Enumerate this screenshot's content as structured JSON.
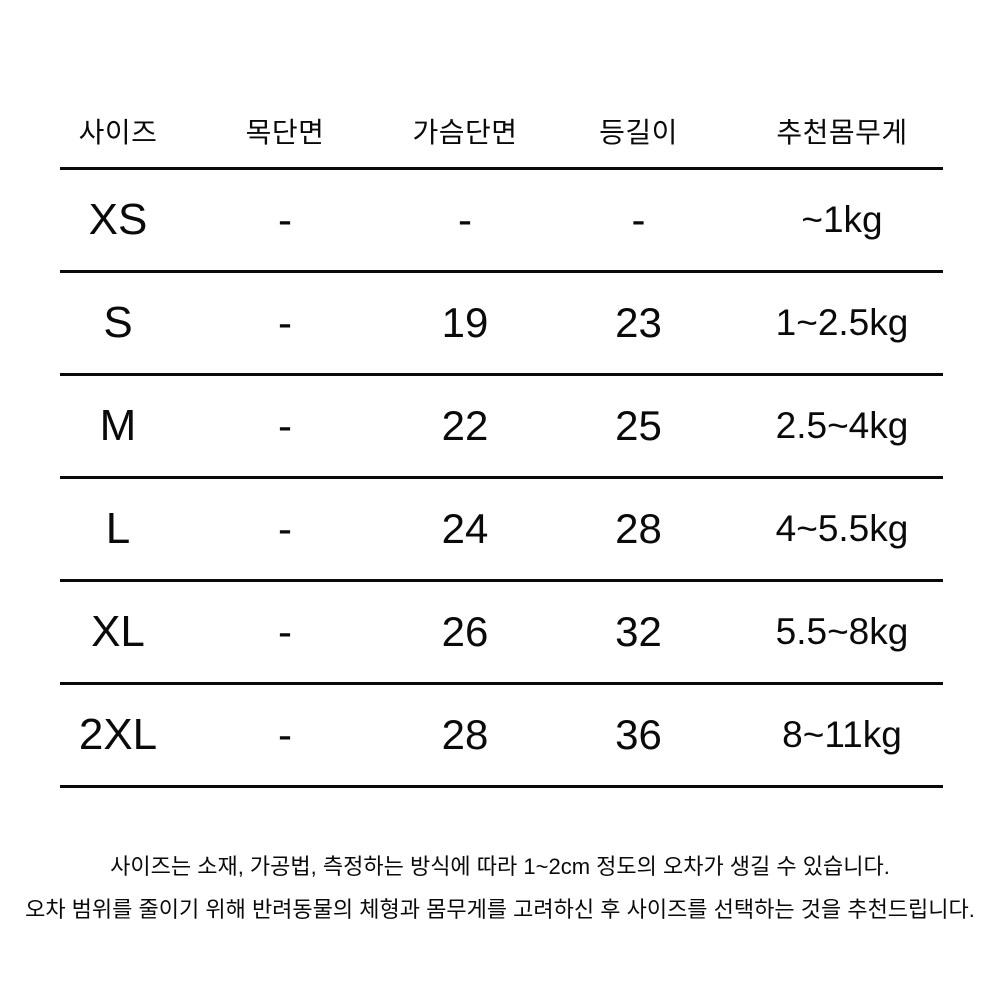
{
  "colors": {
    "background": "#ffffff",
    "text": "#0a0a0a",
    "rule_line": "#0a0a0a"
  },
  "table": {
    "headers": {
      "size": "사이즈",
      "neck": "목단면",
      "chest": "가슴단면",
      "back": "등길이",
      "weight": "추천몸무게"
    },
    "rows": [
      {
        "size": "XS",
        "neck": "-",
        "chest": "-",
        "back": "-",
        "weight": "~1kg"
      },
      {
        "size": "S",
        "neck": "-",
        "chest": "19",
        "back": "23",
        "weight": "1~2.5kg"
      },
      {
        "size": "M",
        "neck": "-",
        "chest": "22",
        "back": "25",
        "weight": "2.5~4kg"
      },
      {
        "size": "L",
        "neck": "-",
        "chest": "24",
        "back": "28",
        "weight": "4~5.5kg"
      },
      {
        "size": "XL",
        "neck": "-",
        "chest": "26",
        "back": "32",
        "weight": "5.5~8kg"
      },
      {
        "size": "2XL",
        "neck": "-",
        "chest": "28",
        "back": "36",
        "weight": "8~11kg"
      }
    ]
  },
  "notes": {
    "line1": "사이즈는 소재, 가공법, 측정하는 방식에 따라 1~2cm 정도의 오차가 생길 수 있습니다.",
    "line2": "오차 범위를 줄이기 위해 반려동물의 체형과 몸무게를 고려하신 후 사이즈를 선택하는 것을 추천드립니다."
  },
  "chart_data": {
    "type": "table",
    "title": "",
    "columns": [
      "사이즈",
      "목단면",
      "가슴단면",
      "등길이",
      "추천몸무게"
    ],
    "rows": [
      [
        "XS",
        "-",
        "-",
        "-",
        "~1kg"
      ],
      [
        "S",
        "-",
        "19",
        "23",
        "1~2.5kg"
      ],
      [
        "M",
        "-",
        "22",
        "25",
        "2.5~4kg"
      ],
      [
        "L",
        "-",
        "24",
        "28",
        "4~5.5kg"
      ],
      [
        "XL",
        "-",
        "26",
        "32",
        "5.5~8kg"
      ],
      [
        "2XL",
        "-",
        "28",
        "36",
        "8~11kg"
      ]
    ]
  }
}
